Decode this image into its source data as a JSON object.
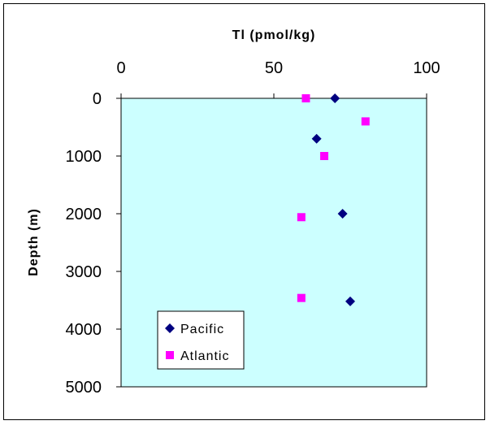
{
  "chart_data": {
    "type": "scatter",
    "title": "",
    "xlabel": "Tl (pmol/kg)",
    "ylabel": "Depth (m)",
    "xlim": [
      0,
      100
    ],
    "ylim": [
      0,
      5000
    ],
    "y_inverted": true,
    "x_axis_position": "top",
    "xticks": [
      0,
      50,
      100
    ],
    "yticks": [
      0,
      1000,
      2000,
      3000,
      4000,
      5000
    ],
    "plot_background": "#ccffff",
    "legend_position": "bottom-left",
    "series": [
      {
        "name": "Pacific",
        "marker": "diamond",
        "color": "#000080",
        "points": [
          {
            "x": 70,
            "y": 0
          },
          {
            "x": 64,
            "y": 700
          },
          {
            "x": 72.5,
            "y": 2000
          },
          {
            "x": 75,
            "y": 3520
          }
        ]
      },
      {
        "name": "Atlantic",
        "marker": "square",
        "color": "#ff00ff",
        "points": [
          {
            "x": 60.5,
            "y": 0
          },
          {
            "x": 80,
            "y": 400
          },
          {
            "x": 66.5,
            "y": 1000
          },
          {
            "x": 59,
            "y": 2060
          },
          {
            "x": 59,
            "y": 3460
          }
        ]
      }
    ]
  }
}
